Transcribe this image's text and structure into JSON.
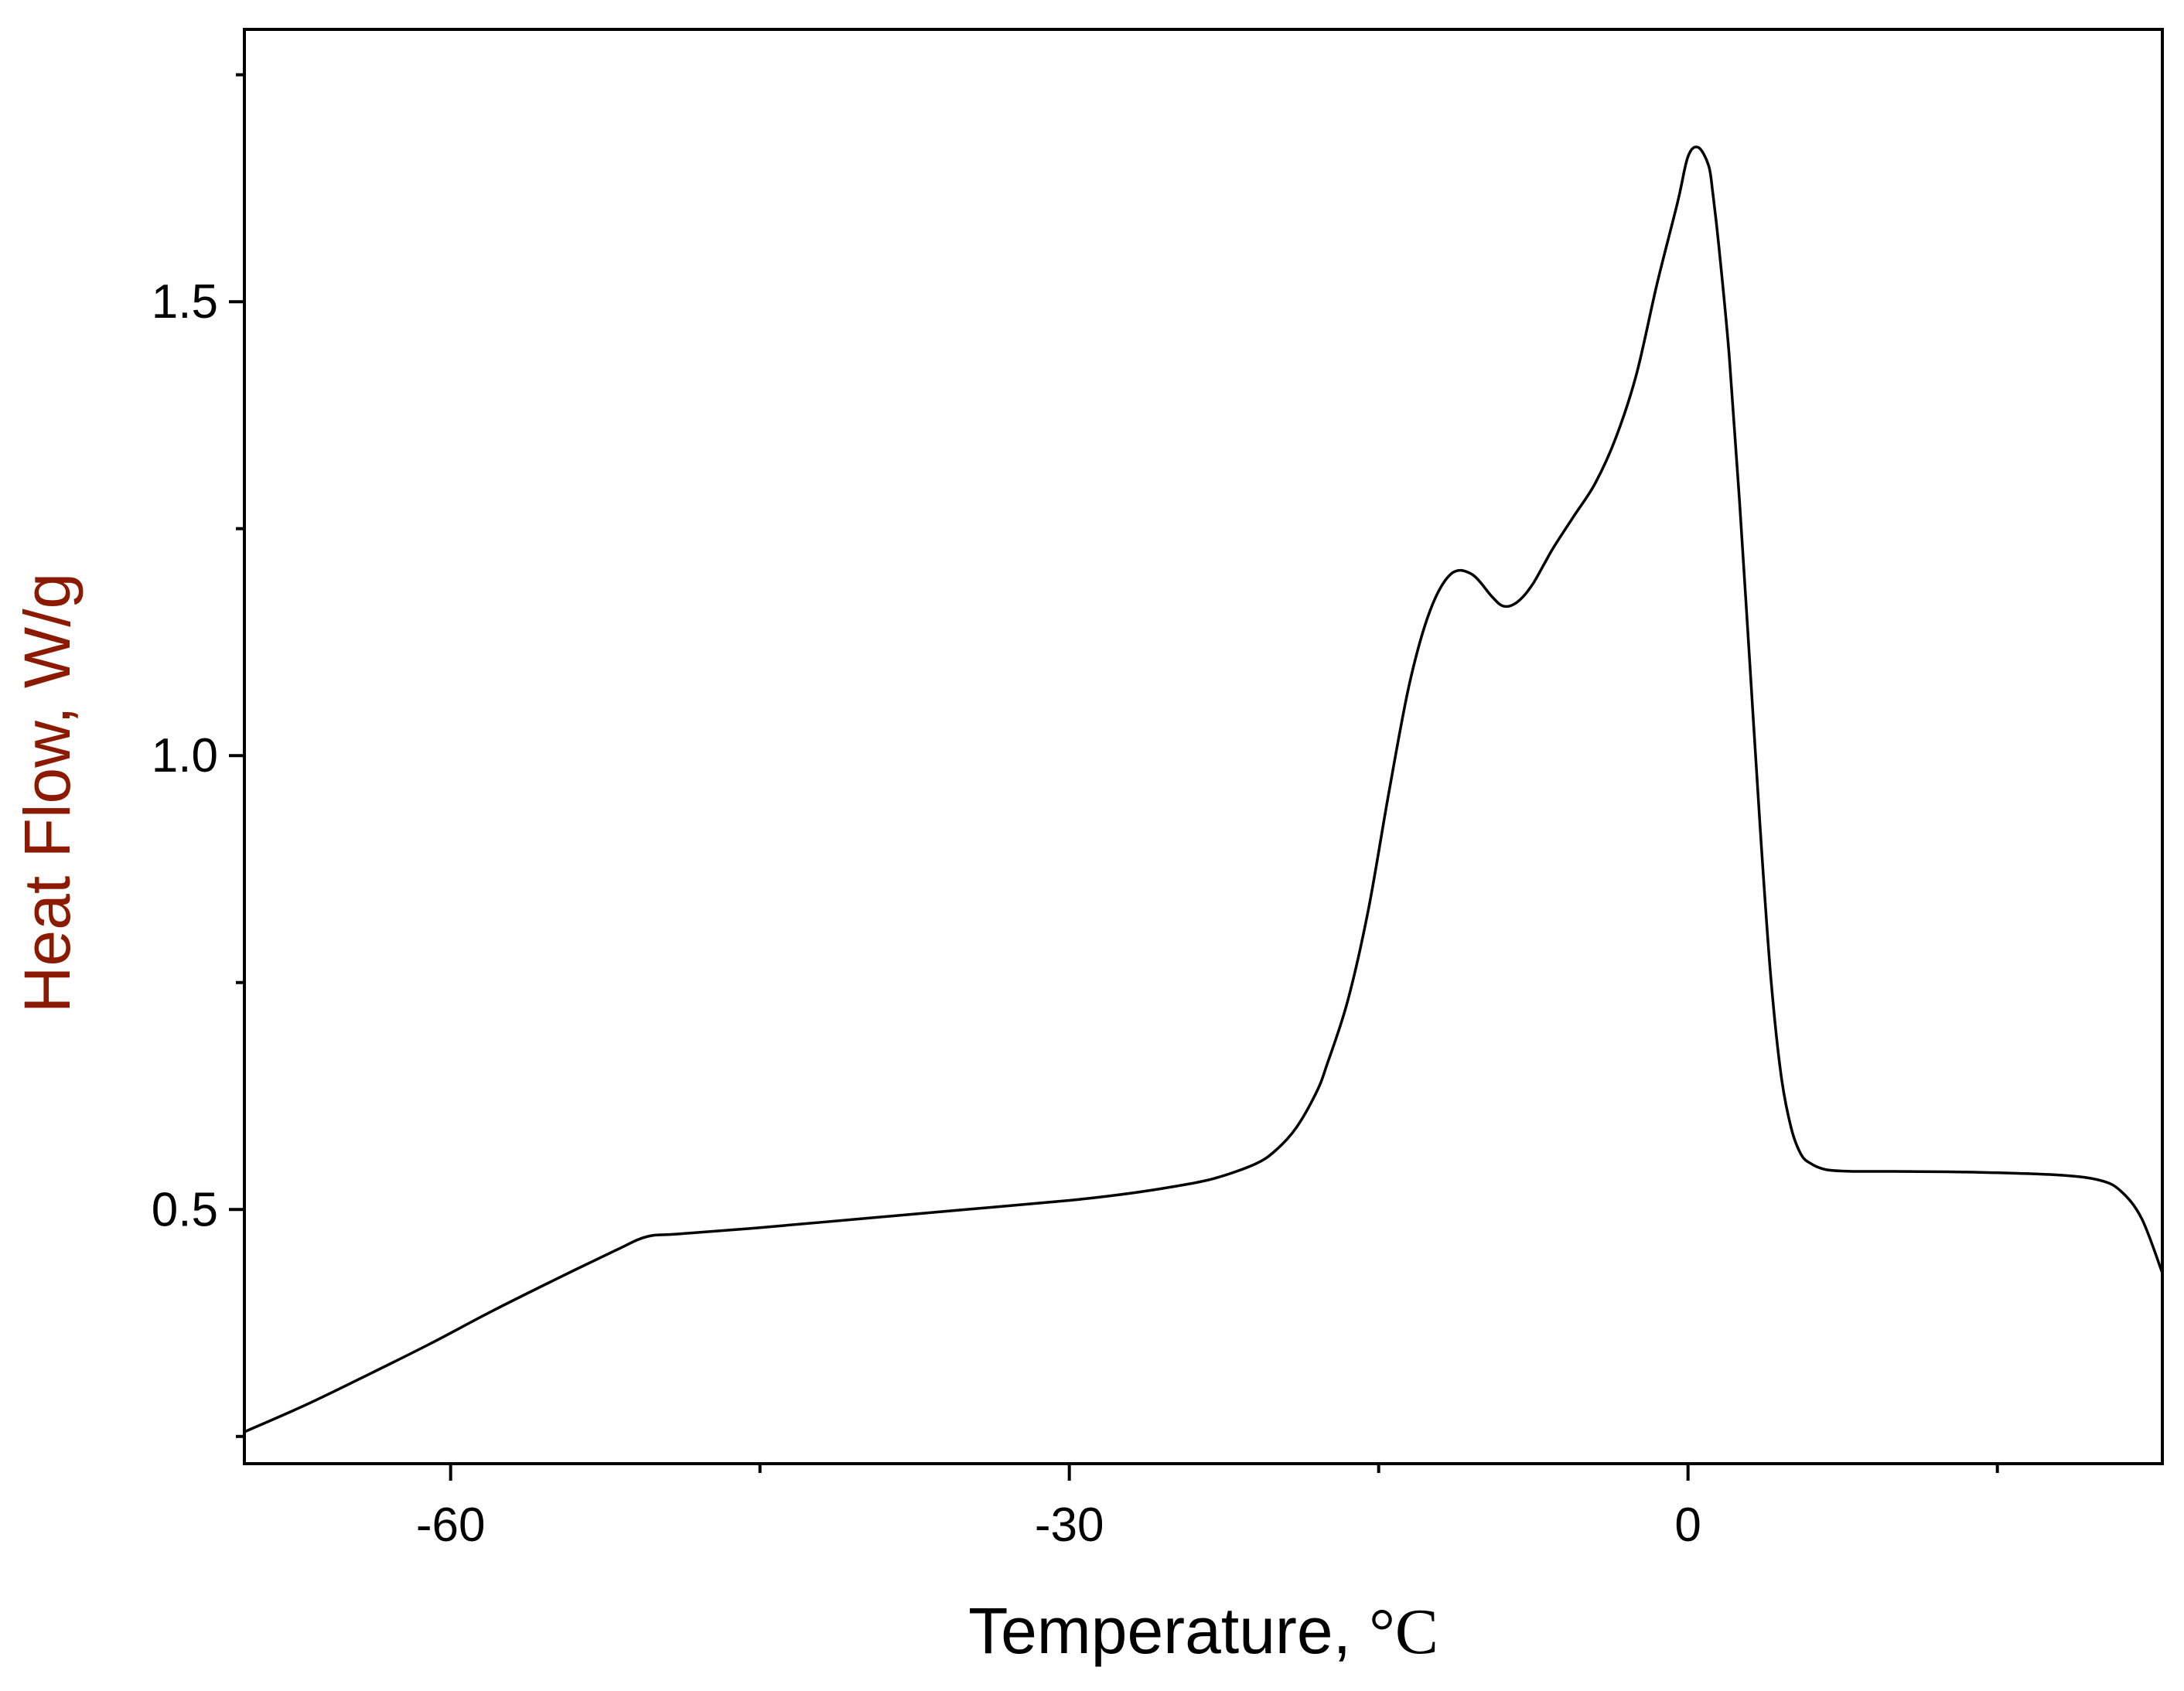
{
  "chart_data": {
    "type": "line",
    "title": "",
    "xlabel": "Temperature, ",
    "xunit": "°C",
    "ylabel": "Heat Flow, W/g",
    "xlim": [
      -70,
      23
    ],
    "ylim": [
      0.22,
      1.8
    ],
    "x_ticks_major": [
      -60,
      -30,
      0
    ],
    "x_ticks_major_labels": [
      "-60",
      "-30",
      "0"
    ],
    "x_ticks_minor": [
      -45,
      -15,
      15
    ],
    "y_ticks_major": [
      0.5,
      1.0,
      1.5
    ],
    "y_ticks_major_labels": [
      "0.5",
      "1.0",
      "1.5"
    ],
    "y_ticks_minor": [
      0.25,
      0.75,
      1.25,
      1.75
    ],
    "grid": false,
    "colors": {
      "line": "#000000",
      "ylabel": "#8b1a00",
      "xlabel": "#000000"
    },
    "series": [
      {
        "x": [
          -70,
          -67,
          -64,
          -61,
          -58,
          -55,
          -52,
          -50.5,
          -49,
          -45,
          -40,
          -35,
          -30,
          -27,
          -25,
          -23,
          -21,
          -20,
          -19,
          -18,
          -17.5,
          -16.5,
          -15.5,
          -14.5,
          -13.5,
          -12.5,
          -11.5,
          -10.5,
          -9.5,
          -9,
          -8.5,
          -8,
          -7.5,
          -7,
          -6.5,
          -5.5,
          -4.5,
          -3.5,
          -2.5,
          -1.5,
          -0.5,
          0,
          0.5,
          1,
          1.2,
          1.5,
          2,
          2.5,
          3,
          3.5,
          4,
          4.5,
          5,
          5.5,
          6,
          6.5,
          7,
          8,
          10,
          14,
          18,
          20,
          21,
          22,
          23
        ],
        "y": [
          0.255,
          0.285,
          0.318,
          0.352,
          0.388,
          0.422,
          0.455,
          0.47,
          0.473,
          0.48,
          0.49,
          0.5,
          0.51,
          0.518,
          0.525,
          0.534,
          0.55,
          0.565,
          0.59,
          0.63,
          0.66,
          0.73,
          0.83,
          0.96,
          1.08,
          1.16,
          1.2,
          1.2,
          1.175,
          1.165,
          1.166,
          1.175,
          1.19,
          1.21,
          1.23,
          1.265,
          1.3,
          1.35,
          1.42,
          1.52,
          1.61,
          1.66,
          1.67,
          1.65,
          1.62,
          1.56,
          1.44,
          1.28,
          1.1,
          0.92,
          0.76,
          0.65,
          0.59,
          0.56,
          0.55,
          0.545,
          0.543,
          0.542,
          0.542,
          0.541,
          0.538,
          0.532,
          0.52,
          0.49,
          0.43
        ]
      }
    ]
  }
}
